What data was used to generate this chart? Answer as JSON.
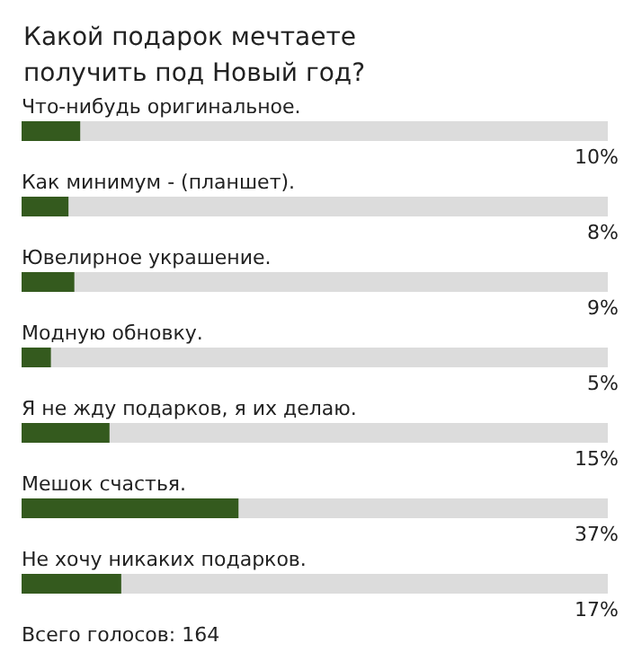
{
  "chart_data": {
    "type": "bar",
    "orientation": "horizontal",
    "title": "Какой подарок мечтаете получить под Новый год?",
    "categories": [
      "Что-нибудь оригинальное.",
      "Как минимум - (планшет).",
      "Ювелирное украшение.",
      "Модную обновку.",
      "Я не жду подарков, я их делаю.",
      "Мешок счастья.",
      "Не хочу никаких подарков."
    ],
    "values": [
      10,
      8,
      9,
      5,
      15,
      37,
      17
    ],
    "value_labels": [
      "10%",
      "8%",
      "9%",
      "5%",
      "15%",
      "37%",
      "17%"
    ],
    "color": "#345a1e",
    "xlim": [
      0,
      100
    ],
    "tick_labels": "y",
    "annotations": [
      "Всего голосов: 164"
    ]
  }
}
